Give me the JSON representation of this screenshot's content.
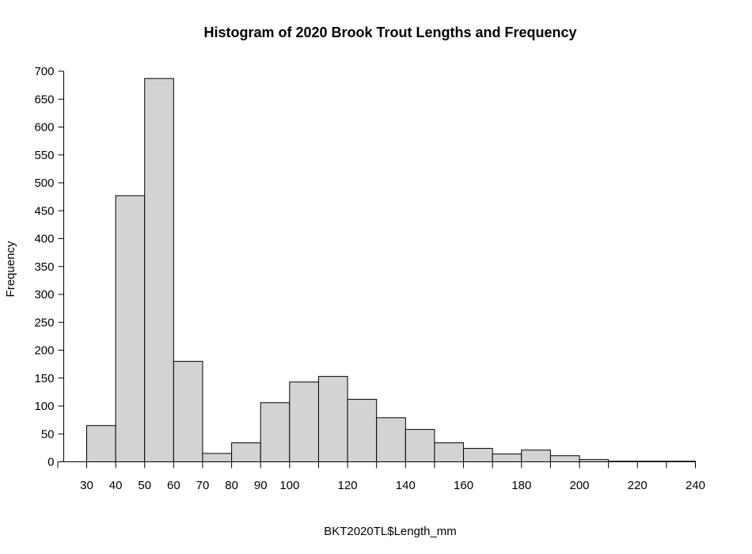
{
  "chart_data": {
    "type": "bar",
    "title": "Histogram of 2020 Brook Trout Lengths and Frequency",
    "xlabel": "BKT2020TL$Length_mm",
    "ylabel": "Frequency",
    "xlim": [
      30,
      240
    ],
    "ylim": [
      0,
      700
    ],
    "bin_width": 10,
    "bins": [
      {
        "start": 30,
        "end": 40,
        "count": 65
      },
      {
        "start": 40,
        "end": 50,
        "count": 477
      },
      {
        "start": 50,
        "end": 60,
        "count": 687
      },
      {
        "start": 60,
        "end": 70,
        "count": 180
      },
      {
        "start": 70,
        "end": 80,
        "count": 15
      },
      {
        "start": 80,
        "end": 90,
        "count": 34
      },
      {
        "start": 90,
        "end": 100,
        "count": 106
      },
      {
        "start": 100,
        "end": 110,
        "count": 143
      },
      {
        "start": 110,
        "end": 120,
        "count": 153
      },
      {
        "start": 120,
        "end": 130,
        "count": 112
      },
      {
        "start": 130,
        "end": 140,
        "count": 79
      },
      {
        "start": 140,
        "end": 150,
        "count": 58
      },
      {
        "start": 150,
        "end": 160,
        "count": 34
      },
      {
        "start": 160,
        "end": 170,
        "count": 24
      },
      {
        "start": 170,
        "end": 180,
        "count": 14
      },
      {
        "start": 180,
        "end": 190,
        "count": 21
      },
      {
        "start": 190,
        "end": 200,
        "count": 11
      },
      {
        "start": 200,
        "end": 210,
        "count": 4
      },
      {
        "start": 210,
        "end": 220,
        "count": 1
      },
      {
        "start": 220,
        "end": 230,
        "count": 1
      },
      {
        "start": 230,
        "end": 240,
        "count": 1
      }
    ],
    "x_tick_labels": [
      "30",
      "40",
      "50",
      "60",
      "70",
      "80",
      "90",
      "100",
      "120",
      "140",
      "160",
      "180",
      "200",
      "220",
      "240"
    ],
    "y_tick_labels": [
      "0",
      "50",
      "100",
      "150",
      "200",
      "250",
      "300",
      "350",
      "400",
      "450",
      "500",
      "550",
      "600",
      "650",
      "700"
    ],
    "grid": false,
    "legend": "none",
    "colors": {
      "bar_fill": "#d3d3d3",
      "bar_stroke": "#000000",
      "background": "#ffffff"
    }
  }
}
